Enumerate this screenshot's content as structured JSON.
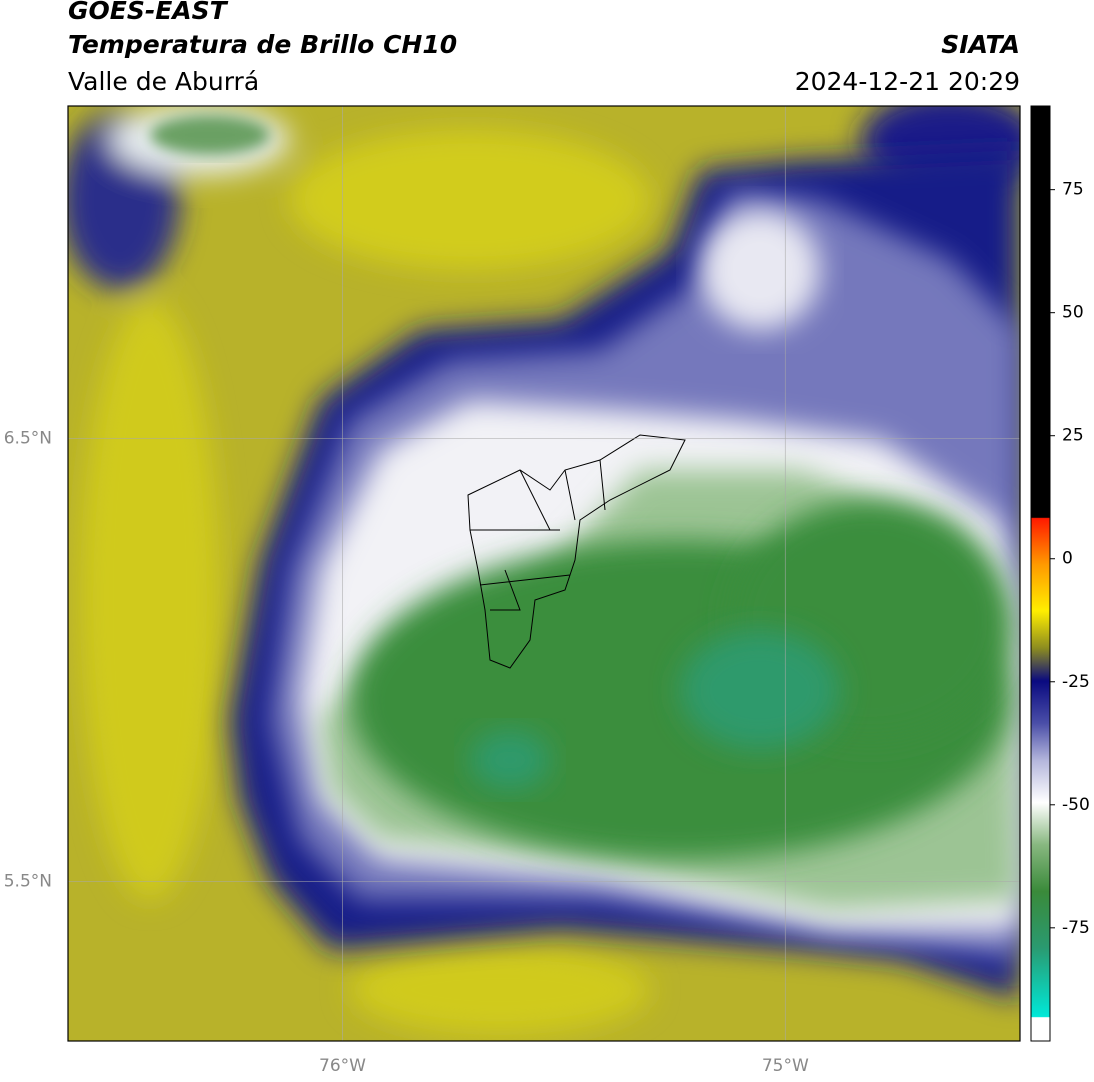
{
  "header": {
    "title": "GOES-EAST",
    "product": "Temperatura de Brillo CH10",
    "region": "Valle de Aburrá",
    "source": "SIATA",
    "timestamp": "2024-12-21 20:29"
  },
  "map": {
    "lon_range": [
      -76.62,
      -74.47
    ],
    "lat_range": [
      7.25,
      5.14
    ],
    "xticks": [
      {
        "value": -76,
        "label": "76°W"
      },
      {
        "value": -75,
        "label": "75°W"
      }
    ],
    "yticks": [
      {
        "value": 6.5,
        "label": "6.5°N"
      },
      {
        "value": 5.5,
        "label": "5.5°N"
      }
    ]
  },
  "colorbar": {
    "range": [
      92,
      -98
    ],
    "ticks": [
      75,
      50,
      25,
      0,
      -25,
      -50,
      -75
    ]
  }
}
